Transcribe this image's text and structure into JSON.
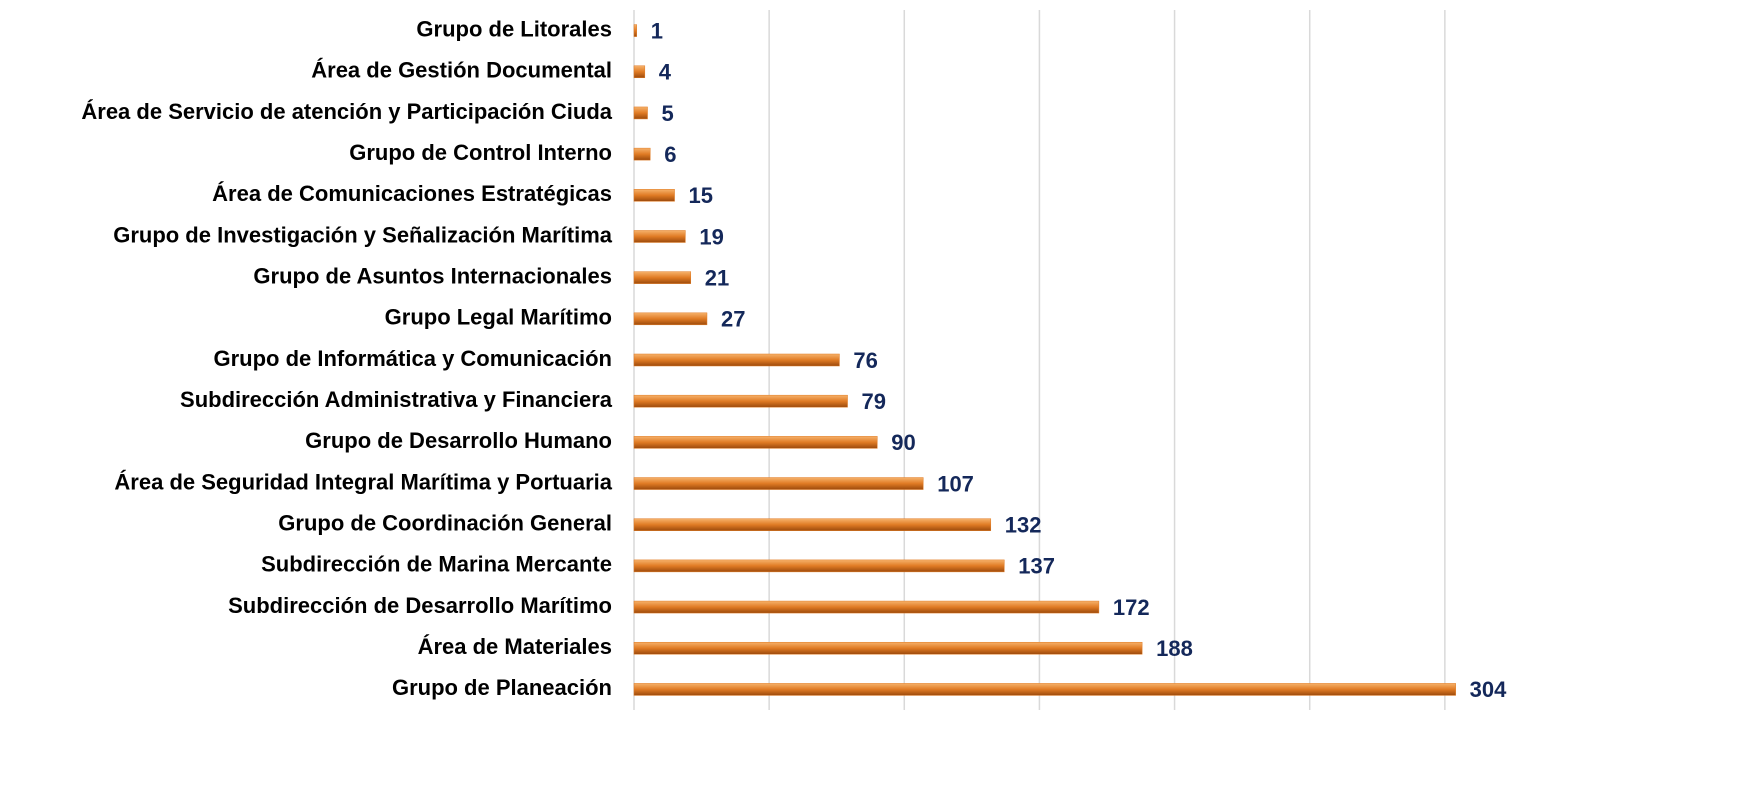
{
  "chart_data": {
    "type": "bar",
    "orientation": "horizontal",
    "categories": [
      "Grupo de Litorales",
      "Área de Gestión Documental",
      "Área de Servicio de atención y Participación Ciuda",
      "Grupo de Control Interno",
      "Área de Comunicaciones Estratégicas",
      "Grupo de Investigación y Señalización Marítima",
      "Grupo de Asuntos Internacionales",
      "Grupo Legal Marítimo",
      "Grupo de Informática y Comunicación",
      "Subdirección Administrativa y Financiera",
      "Grupo de Desarrollo Humano",
      "Área de Seguridad Integral Marítima y Portuaria",
      "Grupo de Coordinación General",
      "Subdirección de Marina Mercante",
      "Subdirección de Desarrollo Marítimo",
      "Área de Materiales",
      "Grupo de Planeación"
    ],
    "values": [
      1,
      4,
      5,
      6,
      15,
      19,
      21,
      27,
      76,
      79,
      90,
      107,
      132,
      137,
      172,
      188,
      304
    ],
    "color": "#e07b24",
    "label_color": "#14285a",
    "xlim": [
      0,
      350
    ],
    "xticks": [
      0,
      50,
      100,
      150,
      200,
      250,
      300
    ],
    "grid": true
  }
}
